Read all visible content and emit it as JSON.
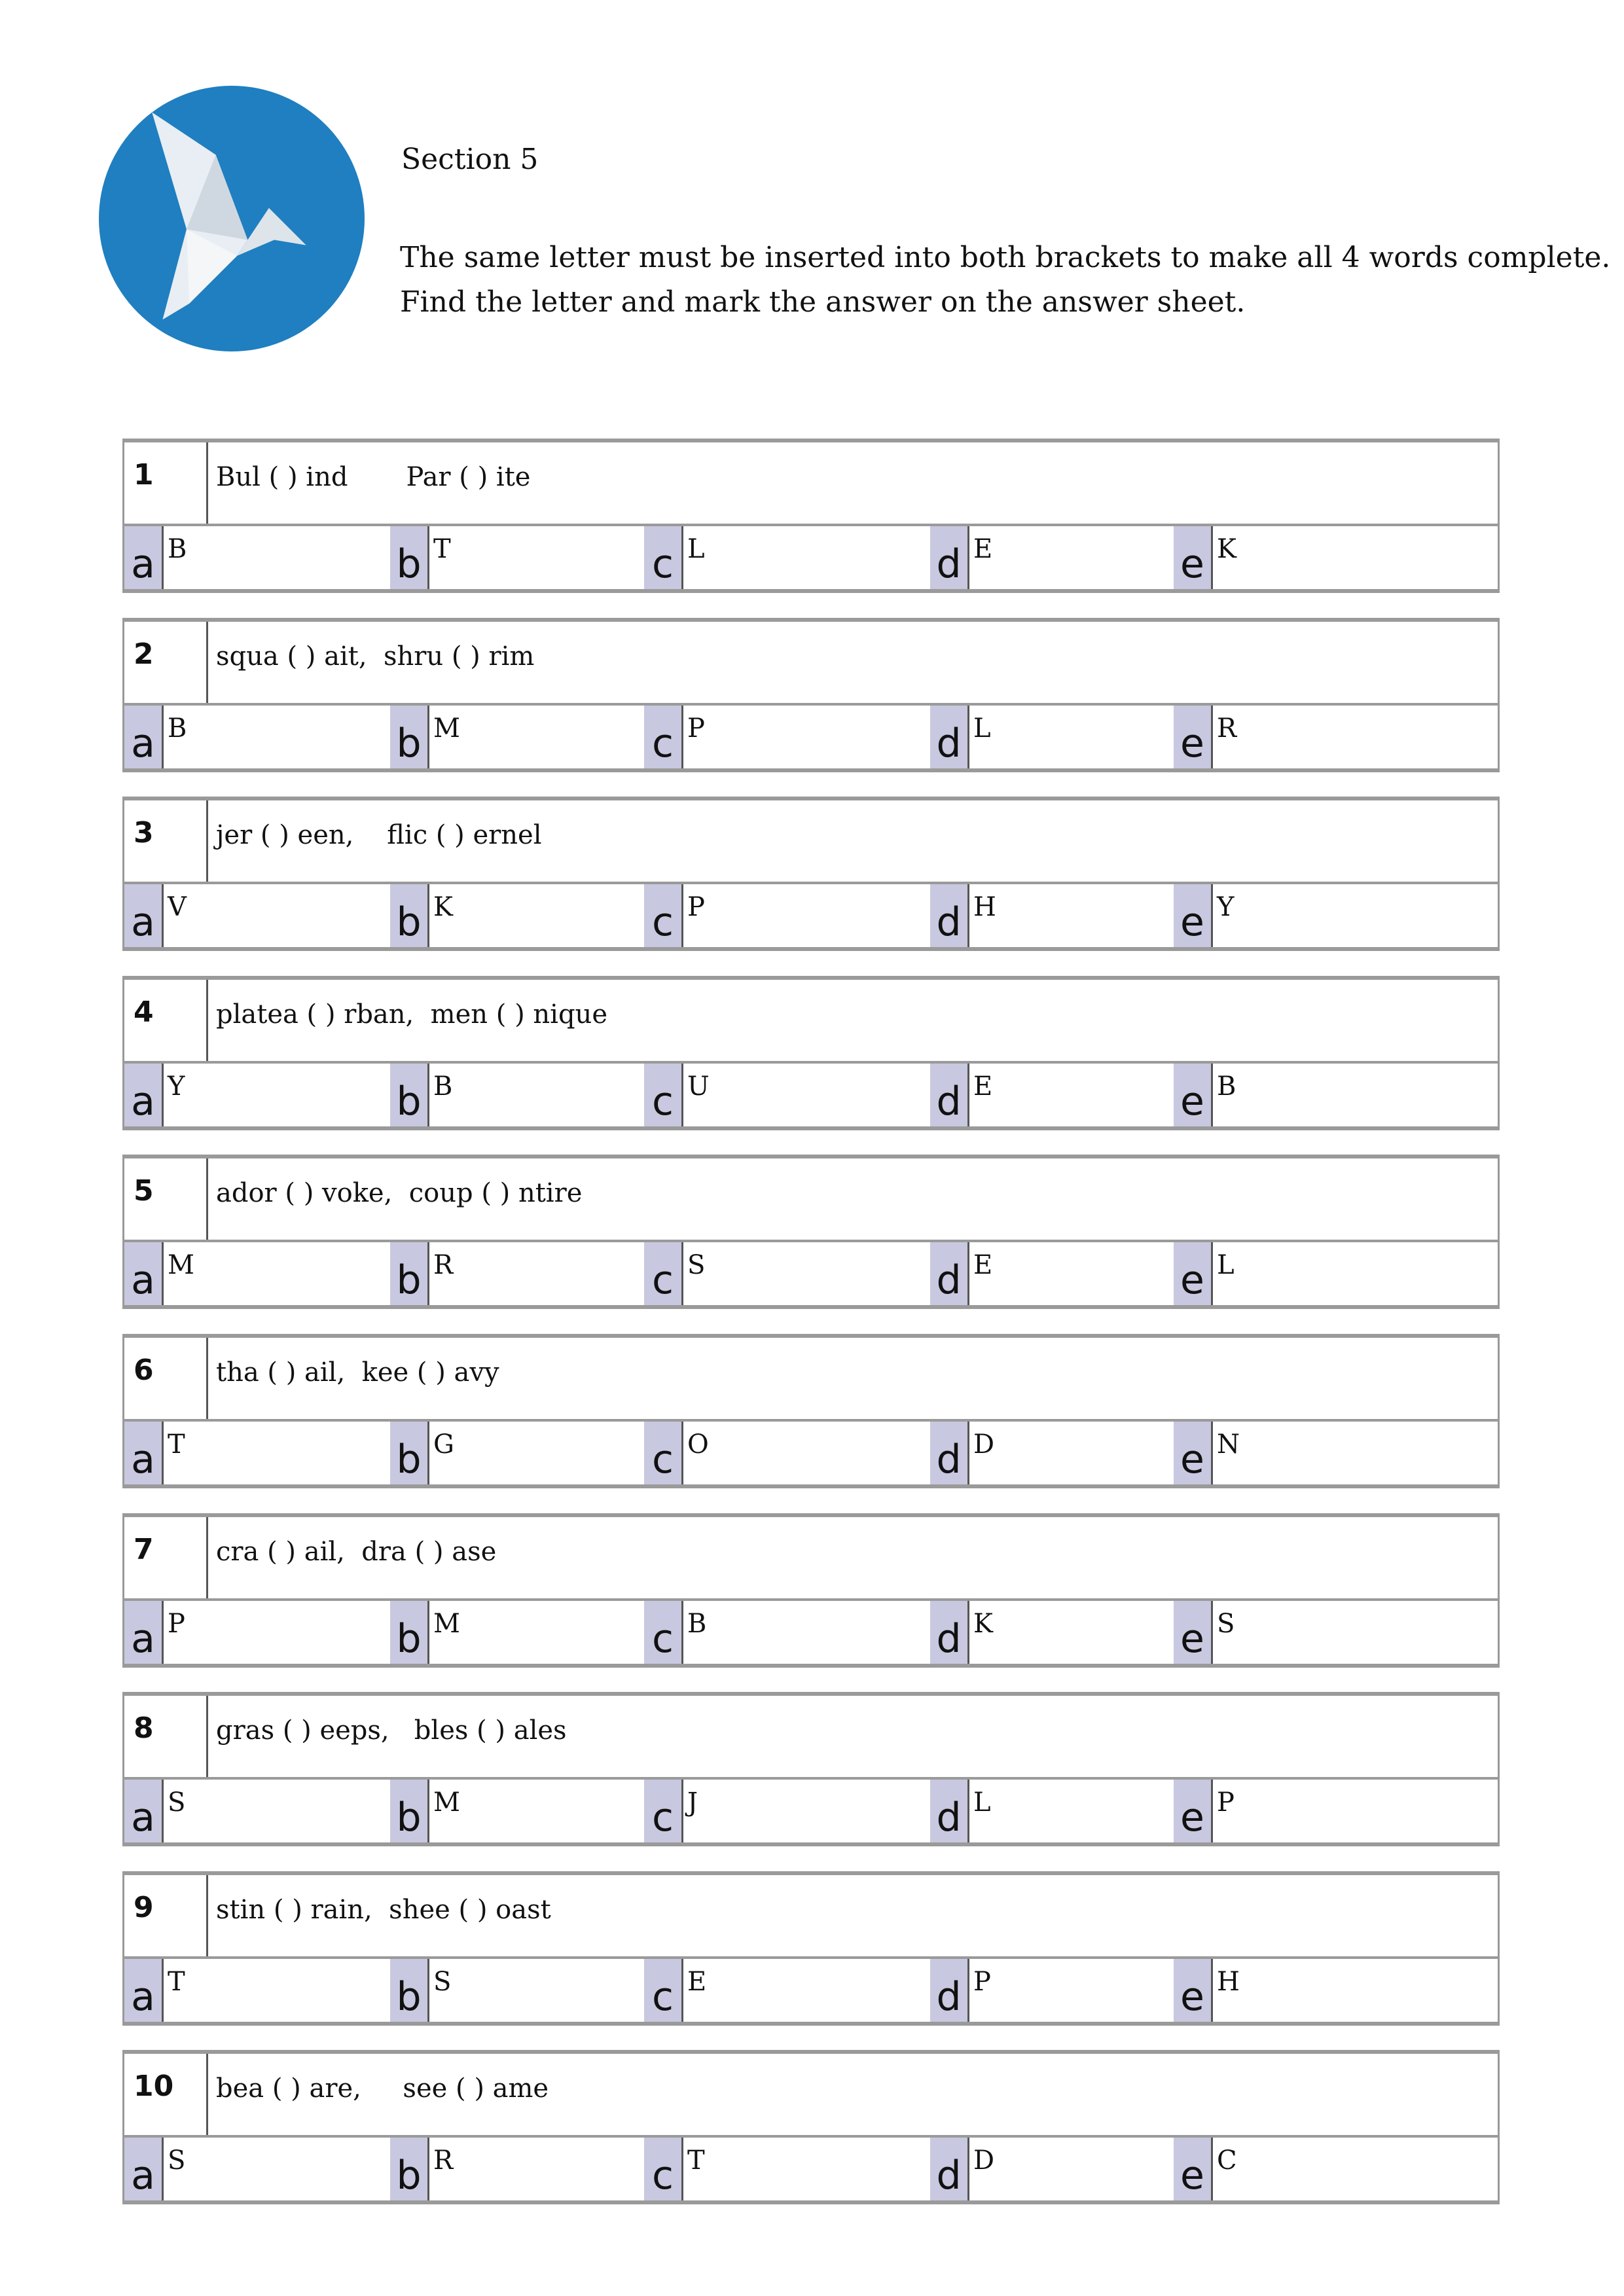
{
  "header": {
    "title": "Section 5",
    "instructions": [
      "The same letter must be inserted into both brackets to make all 4 words complete.",
      "Find the letter and mark the answer on the answer sheet."
    ],
    "logo_icon": "origami-bird-icon",
    "logo_color": "#1f7fc0"
  },
  "option_labels": [
    "a",
    "b",
    "c",
    "d",
    "e"
  ],
  "questions": [
    {
      "number": "1",
      "text": "Bul ( ) ind       Par ( ) ite",
      "options": [
        "B",
        "T",
        "L",
        "E",
        "K"
      ]
    },
    {
      "number": "2",
      "text": "squa ( ) ait,  shru ( ) rim",
      "options": [
        "B",
        "M",
        "P",
        "L",
        "R"
      ]
    },
    {
      "number": "3",
      "text": "jer ( ) een,    flic ( ) ernel",
      "options": [
        "V",
        "K",
        "P",
        "H",
        "Y"
      ]
    },
    {
      "number": "4",
      "text": "platea ( ) rban,  men ( ) nique",
      "options": [
        "Y",
        "B",
        "U",
        "E",
        "B"
      ]
    },
    {
      "number": "5",
      "text": "ador ( ) voke,  coup ( ) ntire",
      "options": [
        "M",
        "R",
        "S",
        "E",
        "L"
      ]
    },
    {
      "number": "6",
      "text": "tha ( ) ail,  kee ( ) avy",
      "options": [
        "T",
        "G",
        "O",
        "D",
        "N"
      ]
    },
    {
      "number": "7",
      "text": "cra ( ) ail,  dra ( ) ase",
      "options": [
        "P",
        "M",
        "B",
        "K",
        "S"
      ]
    },
    {
      "number": "8",
      "text": "gras ( ) eeps,   bles ( ) ales",
      "options": [
        "S",
        "M",
        "J",
        "L",
        "P"
      ]
    },
    {
      "number": "9",
      "text": "stin ( ) rain,  shee ( ) oast",
      "options": [
        "T",
        "S",
        "E",
        "P",
        "H"
      ]
    },
    {
      "number": "10",
      "text": "bea ( ) are,     see ( ) ame",
      "options": [
        "S",
        "R",
        "T",
        "D",
        "C"
      ]
    }
  ]
}
